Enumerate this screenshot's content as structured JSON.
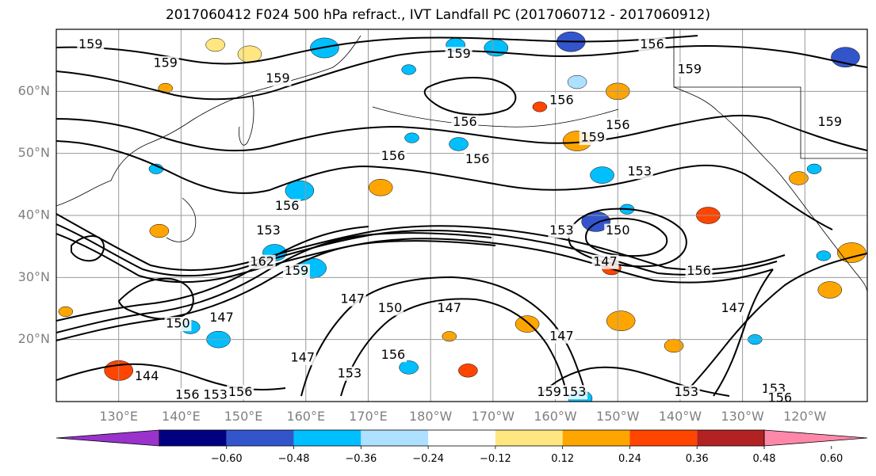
{
  "title": "2017060412 F024 500 hPa refract., IVT Landfall PC (2017060712 - 2017060912)",
  "latitude_labels": [
    {
      "text": "60°N",
      "lat": 60
    },
    {
      "text": "50°N",
      "lat": 50
    },
    {
      "text": "40°N",
      "lat": 40
    },
    {
      "text": "30°N",
      "lat": 30
    },
    {
      "text": "20°N",
      "lat": 20
    }
  ],
  "longitude_labels": [
    {
      "text": "130°E",
      "lon": 130
    },
    {
      "text": "140°E",
      "lon": 140
    },
    {
      "text": "150°E",
      "lon": 150
    },
    {
      "text": "160°E",
      "lon": 160
    },
    {
      "text": "170°E",
      "lon": 170
    },
    {
      "text": "180°W",
      "lon": 180
    },
    {
      "text": "170°W",
      "lon": 190
    },
    {
      "text": "160°W",
      "lon": 200
    },
    {
      "text": "150°W",
      "lon": 210
    },
    {
      "text": "140°W",
      "lon": 220
    },
    {
      "text": "130°W",
      "lon": 230
    },
    {
      "text": "120°W",
      "lon": 240
    }
  ],
  "extent": {
    "lon_min": 120,
    "lon_max": 250,
    "lat_min": 10,
    "lat_max": 70
  },
  "colorbar": {
    "colors": [
      "#9933cc",
      "#000080",
      "#3355cc",
      "#00bfff",
      "#aee0ff",
      "#ffffff",
      "#ffe680",
      "#ffa500",
      "#ff4500",
      "#b22222",
      "#ff88aa"
    ],
    "tick_labels": [
      "−0.60",
      "−0.48",
      "−0.36",
      "−0.24",
      "−0.12",
      "0.12",
      "0.24",
      "0.36",
      "0.48",
      "0.60"
    ]
  },
  "contour_labels": [
    {
      "text": "159",
      "lon": 125.5,
      "lat": 67.5
    },
    {
      "text": "159",
      "lon": 137.5,
      "lat": 64.5
    },
    {
      "text": "159",
      "lon": 155.5,
      "lat": 62.0
    },
    {
      "text": "159",
      "lon": 184.5,
      "lat": 66.0
    },
    {
      "text": "156",
      "lon": 215.5,
      "lat": 67.5
    },
    {
      "text": "159",
      "lon": 221.5,
      "lat": 63.5
    },
    {
      "text": "156",
      "lon": 185.5,
      "lat": 55.0
    },
    {
      "text": "156",
      "lon": 201.0,
      "lat": 58.5
    },
    {
      "text": "156",
      "lon": 174.0,
      "lat": 49.5
    },
    {
      "text": "156",
      "lon": 187.5,
      "lat": 49.0
    },
    {
      "text": "159",
      "lon": 206.0,
      "lat": 52.5
    },
    {
      "text": "156",
      "lon": 210.0,
      "lat": 54.5
    },
    {
      "text": "159",
      "lon": 244.0,
      "lat": 55.0
    },
    {
      "text": "153",
      "lon": 213.5,
      "lat": 47.0
    },
    {
      "text": "156",
      "lon": 157.0,
      "lat": 41.5
    },
    {
      "text": "153",
      "lon": 154.0,
      "lat": 37.5
    },
    {
      "text": "162",
      "lon": 153.0,
      "lat": 32.5
    },
    {
      "text": "159",
      "lon": 158.5,
      "lat": 31.0
    },
    {
      "text": "153",
      "lon": 201.0,
      "lat": 37.5
    },
    {
      "text": "150",
      "lon": 210.0,
      "lat": 37.5
    },
    {
      "text": "147",
      "lon": 208.0,
      "lat": 32.5
    },
    {
      "text": "156",
      "lon": 223.0,
      "lat": 31.0
    },
    {
      "text": "147",
      "lon": 167.5,
      "lat": 26.5
    },
    {
      "text": "150",
      "lon": 173.5,
      "lat": 25.0
    },
    {
      "text": "147",
      "lon": 183.0,
      "lat": 25.0
    },
    {
      "text": "147",
      "lon": 201.0,
      "lat": 20.5
    },
    {
      "text": "147",
      "lon": 228.5,
      "lat": 25.0
    },
    {
      "text": "150",
      "lon": 139.5,
      "lat": 22.5
    },
    {
      "text": "147",
      "lon": 146.5,
      "lat": 23.5
    },
    {
      "text": "147",
      "lon": 159.5,
      "lat": 17.0
    },
    {
      "text": "153",
      "lon": 167.0,
      "lat": 14.5
    },
    {
      "text": "156",
      "lon": 174.0,
      "lat": 17.5
    },
    {
      "text": "144",
      "lon": 134.5,
      "lat": 14.0
    },
    {
      "text": "156",
      "lon": 141.0,
      "lat": 11.0
    },
    {
      "text": "153",
      "lon": 145.5,
      "lat": 11.0
    },
    {
      "text": "156",
      "lon": 149.5,
      "lat": 11.5
    },
    {
      "text": "159",
      "lon": 199.0,
      "lat": 11.5
    },
    {
      "text": "153",
      "lon": 203.0,
      "lat": 11.5
    },
    {
      "text": "153",
      "lon": 221.0,
      "lat": 11.5
    },
    {
      "text": "153",
      "lon": 235.0,
      "lat": 12.0
    },
    {
      "text": "156",
      "lon": 236.0,
      "lat": 10.5
    }
  ],
  "color_patches": [
    {
      "lon": 137.5,
      "lat": 60.5,
      "c": "#ffa500"
    },
    {
      "lon": 145.5,
      "lat": 67.5,
      "c": "#ffe680"
    },
    {
      "lon": 151.0,
      "lat": 66.0,
      "c": "#ffe680"
    },
    {
      "lon": 163.0,
      "lat": 67.0,
      "c": "#00bfff"
    },
    {
      "lon": 176.5,
      "lat": 63.5,
      "c": "#00bfff"
    },
    {
      "lon": 184.0,
      "lat": 67.5,
      "c": "#00bfff"
    },
    {
      "lon": 190.5,
      "lat": 67.0,
      "c": "#00bfff"
    },
    {
      "lon": 202.5,
      "lat": 68.0,
      "c": "#3355cc"
    },
    {
      "lon": 197.5,
      "lat": 57.5,
      "c": "#ff4500"
    },
    {
      "lon": 203.5,
      "lat": 61.5,
      "c": "#aee0ff"
    },
    {
      "lon": 210.0,
      "lat": 60.0,
      "c": "#ffa500"
    },
    {
      "lon": 246.5,
      "lat": 65.5,
      "c": "#3355cc"
    },
    {
      "lon": 241.5,
      "lat": 47.5,
      "c": "#00bfff"
    },
    {
      "lon": 239.0,
      "lat": 46.0,
      "c": "#ffa500"
    },
    {
      "lon": 224.5,
      "lat": 40.0,
      "c": "#ff4500"
    },
    {
      "lon": 206.5,
      "lat": 39.0,
      "c": "#3355cc"
    },
    {
      "lon": 211.5,
      "lat": 41.0,
      "c": "#00bfff"
    },
    {
      "lon": 209.0,
      "lat": 31.5,
      "c": "#ff4500"
    },
    {
      "lon": 207.5,
      "lat": 46.5,
      "c": "#00bfff"
    },
    {
      "lon": 203.5,
      "lat": 52.0,
      "c": "#ffa500"
    },
    {
      "lon": 177.0,
      "lat": 52.5,
      "c": "#00bfff"
    },
    {
      "lon": 184.5,
      "lat": 51.5,
      "c": "#00bfff"
    },
    {
      "lon": 172.0,
      "lat": 44.5,
      "c": "#ffa500"
    },
    {
      "lon": 159.0,
      "lat": 44.0,
      "c": "#00bfff"
    },
    {
      "lon": 136.0,
      "lat": 47.5,
      "c": "#00bfff"
    },
    {
      "lon": 136.5,
      "lat": 37.5,
      "c": "#ffa500"
    },
    {
      "lon": 155.0,
      "lat": 34.0,
      "c": "#00bfff"
    },
    {
      "lon": 161.0,
      "lat": 31.5,
      "c": "#00bfff"
    },
    {
      "lon": 121.5,
      "lat": 24.5,
      "c": "#ffa500"
    },
    {
      "lon": 141.5,
      "lat": 22.0,
      "c": "#00bfff"
    },
    {
      "lon": 146.0,
      "lat": 20.0,
      "c": "#00bfff"
    },
    {
      "lon": 130.0,
      "lat": 15.0,
      "c": "#ff4500"
    },
    {
      "lon": 183.0,
      "lat": 20.5,
      "c": "#ffa500"
    },
    {
      "lon": 186.0,
      "lat": 15.0,
      "c": "#ff4500"
    },
    {
      "lon": 195.5,
      "lat": 22.5,
      "c": "#ffa500"
    },
    {
      "lon": 210.5,
      "lat": 23.0,
      "c": "#ffa500"
    },
    {
      "lon": 232.0,
      "lat": 20.0,
      "c": "#00bfff"
    },
    {
      "lon": 219.0,
      "lat": 19.0,
      "c": "#ffa500"
    },
    {
      "lon": 244.0,
      "lat": 28.0,
      "c": "#ffa500"
    },
    {
      "lon": 247.5,
      "lat": 34.0,
      "c": "#ffa500"
    },
    {
      "lon": 243.0,
      "lat": 33.5,
      "c": "#00bfff"
    },
    {
      "lon": 176.5,
      "lat": 15.5,
      "c": "#00bfff"
    },
    {
      "lon": 204.0,
      "lat": 10.5,
      "c": "#00bfff"
    }
  ]
}
